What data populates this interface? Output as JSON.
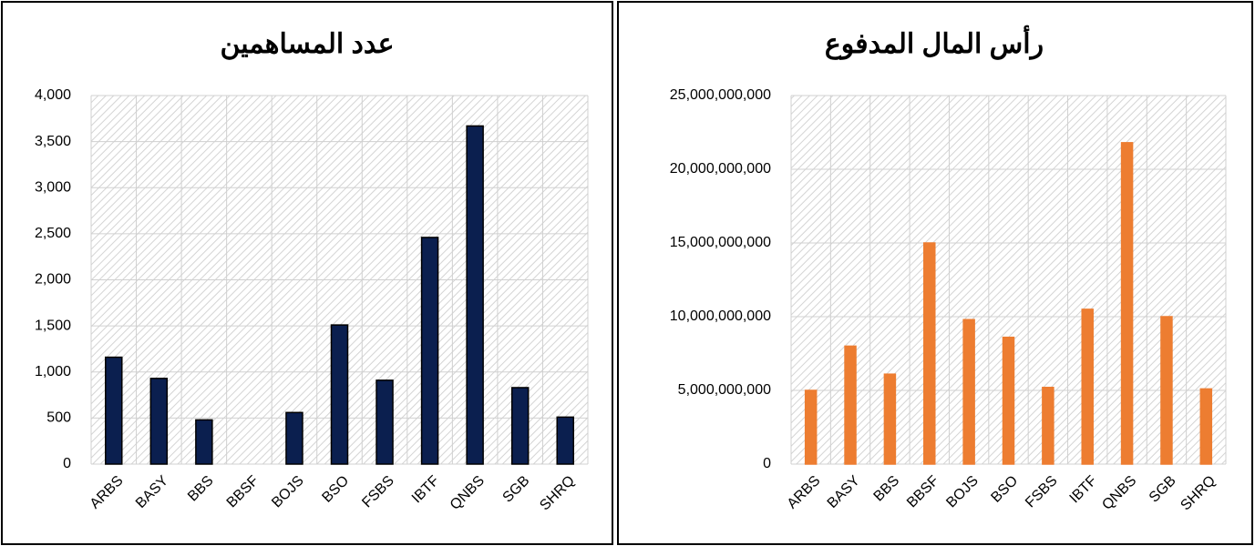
{
  "chart_data": [
    {
      "type": "bar",
      "title": "عدد المساهمين",
      "categories": [
        "ARBS",
        "BASY",
        "BBS",
        "BBSF",
        "BOJS",
        "BSO",
        "FSBS",
        "IBTF",
        "QNBS",
        "SGB",
        "SHRQ"
      ],
      "values": [
        1160,
        930,
        480,
        0,
        560,
        1510,
        910,
        2460,
        3670,
        830,
        510
      ],
      "color": "#0b1f4f",
      "edgecolor": "#000000",
      "ylim": [
        0,
        4000
      ],
      "yticks": [
        0,
        500,
        {
          "value": 1000,
          "label": "1,000"
        },
        {
          "value": 1500,
          "label": "1,500"
        },
        {
          "value": 2000,
          "label": "2,000"
        },
        {
          "value": 2500,
          "label": "2,500"
        },
        {
          "value": 3000,
          "label": "3,000"
        },
        {
          "value": 3500,
          "label": "3,500"
        },
        {
          "value": 4000,
          "label": "4,000"
        }
      ],
      "grid": true
    },
    {
      "type": "bar",
      "title": "رأس المال المدفوع",
      "categories": [
        "ARBS",
        "BASY",
        "BBS",
        "BBSF",
        "BOJS",
        "BSO",
        "FSBS",
        "IBTF",
        "QNBS",
        "SGB",
        "SHRQ"
      ],
      "values": [
        5000000000,
        8000000000,
        6100000000,
        15000000000,
        9800000000,
        8600000000,
        5200000000,
        10500000000,
        21800000000,
        10000000000,
        5100000000
      ],
      "color": "#ed7d31",
      "edgecolor": "#ed7d31",
      "ylim": [
        0,
        25000000000
      ],
      "yticks": [
        0,
        {
          "value": 5000000000,
          "label": "5,000,000,000"
        },
        {
          "value": 10000000000,
          "label": "10,000,000,000"
        },
        {
          "value": 15000000000,
          "label": "15,000,000,000"
        },
        {
          "value": 20000000000,
          "label": "20,000,000,000"
        },
        {
          "value": 25000000000,
          "label": "25,000,000,000"
        }
      ],
      "grid": true
    }
  ]
}
